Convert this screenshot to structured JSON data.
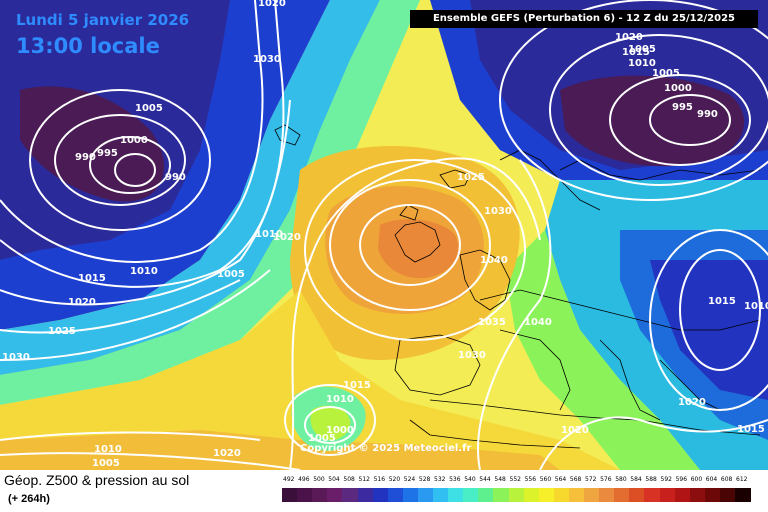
{
  "header": {
    "date": "Lundi 5 janvier 2026",
    "time": "13:00 locale",
    "run": "Ensemble GEFS  (Perturbation 6)  -  12 Z du 25/12/2025"
  },
  "copyright": "Copyright © 2025 Meteociel.fr",
  "footer": {
    "title": "Géop. Z500 & pression au sol",
    "subtitle": "(+ 264h)"
  },
  "legend": {
    "values": [
      "492",
      "496",
      "500",
      "504",
      "508",
      "512",
      "516",
      "520",
      "524",
      "528",
      "532",
      "536",
      "540",
      "544",
      "548",
      "552",
      "556",
      "560",
      "564",
      "568",
      "572",
      "576",
      "580",
      "584",
      "588",
      "592",
      "596",
      "600",
      "604",
      "608",
      "612"
    ],
    "colors": [
      "#3a0f3a",
      "#4a1248",
      "#5a1a58",
      "#6a1e6a",
      "#5b2a80",
      "#3c2aa0",
      "#2233c0",
      "#1f4fd6",
      "#1e74e6",
      "#2a99f0",
      "#31bff2",
      "#3ee0e6",
      "#49eec6",
      "#5ef08e",
      "#8cf25a",
      "#b8f23c",
      "#dcf22a",
      "#f6ef2a",
      "#f7d92e",
      "#f6c03a",
      "#f0a640",
      "#ea8a3e",
      "#e36c30",
      "#dc4e24",
      "#d83224",
      "#c8201c",
      "#b01414",
      "#8c0e0e",
      "#6c0808",
      "#4a0404",
      "#1a0000"
    ]
  },
  "pressure_labels": [
    "1020",
    "1030",
    "1005",
    "1000",
    "990",
    "995",
    "990",
    "1015",
    "1010",
    "1005",
    "1020",
    "1025",
    "1030",
    "1010",
    "1020",
    "1030",
    "1025",
    "1040",
    "1035",
    "1040",
    "1030",
    "1015",
    "1010",
    "1000",
    "1005",
    "1005",
    "1010",
    "1005",
    "1020",
    "1020",
    "1020",
    "1015",
    "1010",
    "1015",
    "1020",
    "1015",
    "1010",
    "1005",
    "1000",
    "995",
    "990"
  ]
}
